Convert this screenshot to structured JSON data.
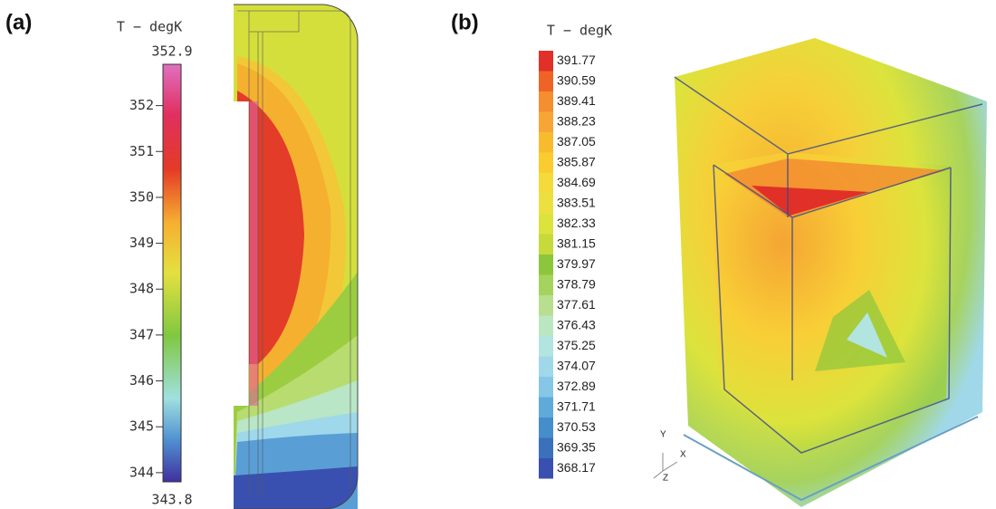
{
  "panels": [
    {
      "label": "(a)",
      "colorbar": {
        "title": "T − degK",
        "max": 352.9,
        "min": 343.8,
        "ticks": [
          352,
          351,
          350,
          349,
          348,
          347,
          346,
          345,
          344
        ]
      }
    },
    {
      "label": "(b)",
      "colorbar": {
        "title": "T − degK",
        "levels": [
          391.77,
          390.59,
          389.41,
          388.23,
          387.05,
          385.87,
          384.69,
          383.51,
          382.33,
          381.15,
          379.97,
          378.79,
          377.61,
          376.43,
          375.25,
          374.07,
          372.89,
          371.71,
          370.53,
          369.35,
          368.17
        ],
        "colors": [
          "#e03028",
          "#ef6426",
          "#f48e30",
          "#f7a636",
          "#f9bb2e",
          "#fbcc30",
          "#f4da3a",
          "#ece040",
          "#dce33c",
          "#c6da3a",
          "#8cc63c",
          "#a6d35e",
          "#b8df90",
          "#bbe6c2",
          "#b2e4e0",
          "#a0d8ea",
          "#86c6e6",
          "#5eaad8",
          "#468ecb",
          "#3b70bb",
          "#3a50b0"
        ]
      },
      "axes_triad": [
        "Y",
        "X",
        "Z"
      ]
    }
  ]
}
